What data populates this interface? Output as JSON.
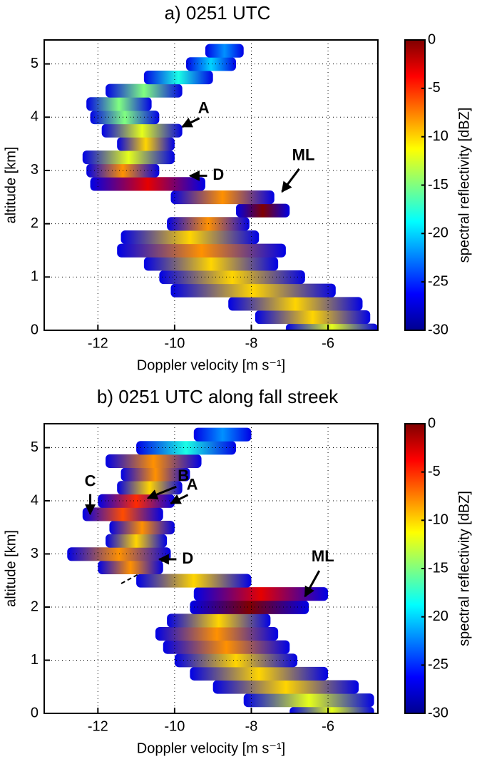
{
  "chart_data": [
    {
      "type": "spectrogram",
      "title": "a) 0251 UTC",
      "xlabel": "Doppler velocity [m s⁻¹]",
      "ylabel": "altitude [km]",
      "xlim": [
        -13.4,
        -4.7
      ],
      "ylim": [
        0,
        5.45
      ],
      "xticks": [
        -12,
        -10,
        -8,
        -6
      ],
      "yticks": [
        0,
        1,
        2,
        3,
        4,
        5
      ],
      "grid": true,
      "colorbar": {
        "label": "spectral reflectivity [dBZ]",
        "lim": [
          -30,
          0
        ],
        "ticks": [
          -30,
          -25,
          -20,
          -15,
          -10,
          -5,
          0
        ]
      },
      "altitude": [
        0,
        0.25,
        0.5,
        0.75,
        1,
        1.25,
        1.5,
        1.75,
        2,
        2.25,
        2.5,
        2.75,
        3,
        3.25,
        3.5,
        3.75,
        4,
        4.25,
        4.5,
        4.75,
        5,
        5.25
      ],
      "vmin": [
        -7.1,
        -7.9,
        -8.6,
        -10.1,
        -10.4,
        -10.8,
        -11.5,
        -11.4,
        -10.2,
        -8.4,
        -10.1,
        -12.2,
        -12.3,
        -12.4,
        -11.5,
        -11.9,
        -12.2,
        -12.3,
        -11.8,
        -10.8,
        -9.7,
        -9.2
      ],
      "vmax": [
        -4.7,
        -4.9,
        -5.1,
        -5.8,
        -6.6,
        -7.3,
        -7.1,
        -7.8,
        -8.05,
        -7.0,
        -7.4,
        -9.2,
        -10.4,
        -10.0,
        -10.0,
        -9.8,
        -10.4,
        -10.6,
        -9.8,
        -9.0,
        -8.4,
        -8.2
      ],
      "peak_dbz": [
        -12,
        -10,
        -10,
        -10,
        -10,
        -10,
        -8,
        -10,
        -8,
        0,
        -8,
        -3,
        -8,
        -12,
        -10,
        -12,
        -15,
        -15,
        -15,
        -18,
        -20,
        -22
      ],
      "annotations": [
        {
          "text": "A",
          "x": -9.8,
          "y": 3.82
        },
        {
          "text": "D",
          "x": -9.6,
          "y": 2.9
        },
        {
          "text": "ML",
          "x": -7.2,
          "y": 2.6
        }
      ]
    },
    {
      "type": "spectrogram",
      "title": "b) 0251 UTC along fall streek",
      "xlabel": "Doppler velocity [m s⁻¹]",
      "ylabel": "altitude [km]",
      "xlim": [
        -13.4,
        -4.7
      ],
      "ylim": [
        0,
        5.45
      ],
      "xticks": [
        -12,
        -10,
        -8,
        -6
      ],
      "yticks": [
        0,
        1,
        2,
        3,
        4,
        5
      ],
      "grid": true,
      "colorbar": {
        "label": "spectral reflectivity [dBZ]",
        "lim": [
          -30,
          0
        ],
        "ticks": [
          -30,
          -25,
          -20,
          -15,
          -10,
          -5,
          0
        ]
      },
      "altitude": [
        0,
        0.25,
        0.5,
        0.75,
        1,
        1.25,
        1.5,
        1.75,
        2,
        2.25,
        2.5,
        2.75,
        3,
        3.25,
        3.5,
        3.75,
        4,
        4.25,
        4.5,
        4.75,
        5,
        5.25
      ],
      "vmin": [
        -7.0,
        -8.2,
        -9.0,
        -9.6,
        -10.0,
        -10.3,
        -10.5,
        -10.2,
        -9.6,
        -9.5,
        -11.0,
        -12.0,
        -12.8,
        -11.8,
        -11.7,
        -12.4,
        -12.0,
        -11.5,
        -11.4,
        -11.8,
        -11.0,
        -9.5
      ],
      "vmax": [
        -4.8,
        -4.8,
        -5.2,
        -6.0,
        -6.8,
        -7.0,
        -7.3,
        -7.5,
        -6.5,
        -6.0,
        -8.0,
        -10.3,
        -10.1,
        -10.2,
        -10.0,
        -10.3,
        -10.0,
        -9.8,
        -9.6,
        -9.3,
        -8.4,
        -8.0
      ],
      "peak_dbz": [
        -12,
        -12,
        -10,
        -10,
        -10,
        -8,
        -8,
        -10,
        0,
        -3,
        -10,
        -8,
        -8,
        -10,
        -8,
        -6,
        -5,
        -10,
        -8,
        -8,
        -18,
        -22
      ],
      "annotations": [
        {
          "text": "B",
          "x": -10.7,
          "y": 4.05
        },
        {
          "text": "A",
          "x": -10.1,
          "y": 3.95
        },
        {
          "text": "C",
          "x": -12.2,
          "y": 3.75
        },
        {
          "text": "D",
          "x": -10.4,
          "y": 2.9
        },
        {
          "text": "ML",
          "x": -6.6,
          "y": 2.2
        }
      ]
    }
  ]
}
